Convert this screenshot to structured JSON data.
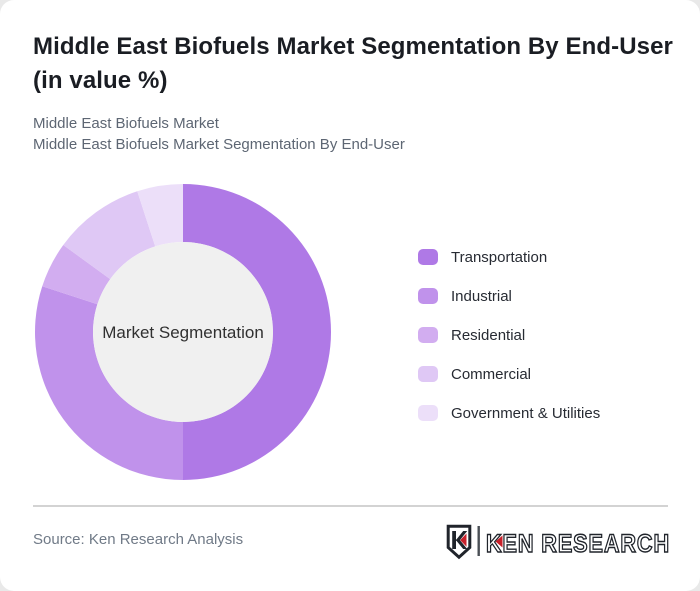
{
  "header": {
    "title": "Middle East Biofuels Market Segmentation By End-User (in value %)",
    "subtitle_line1": "Middle East Biofuels Market",
    "subtitle_line2": "Middle East Biofuels Market Segmentation By End-User"
  },
  "chart_data": {
    "type": "pie",
    "variant": "donut",
    "title": "Middle East Biofuels Market Segmentation By End-User (in value %)",
    "center_label": "Market Segmentation",
    "categories": [
      "Transportation",
      "Industrial",
      "Residential",
      "Commercial",
      "Government & Utilities"
    ],
    "values": [
      50,
      30,
      5,
      10,
      5
    ],
    "unit": "value %",
    "colors": [
      "#af79e6",
      "#c092eb",
      "#d2adf0",
      "#dfc8f5",
      "#ecdff9"
    ],
    "start_angle_deg": 0,
    "direction": "clockwise",
    "legend_position": "right",
    "outer_radius_px": 148,
    "inner_radius_px": 90,
    "hole_color": "#f0f0f0"
  },
  "footer": {
    "source": "Source: Ken Research Analysis",
    "logo": {
      "shield_letter": "K",
      "brand": "KEN RESEARCH",
      "accent_color": "#c8202a",
      "outline_color": "#20242b"
    }
  }
}
